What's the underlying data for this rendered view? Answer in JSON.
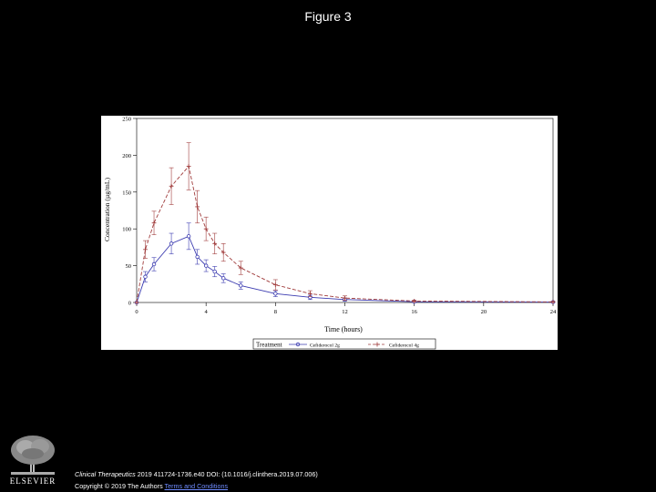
{
  "slide": {
    "title": "Figure 3",
    "citation_journal": "Clinical Therapeutics",
    "citation_rest": " 2019 411724-1736.e40 DOI: (10.1016/j.clinthera.2019.07.006)",
    "copyright_text": "Copyright © 2019 The Authors ",
    "terms_link": "Terms and Conditions",
    "publisher": "ELSEVIER"
  },
  "chart_data": {
    "type": "line",
    "xlabel": "Time (hours)",
    "ylabel": "Concentration (µg/mL)",
    "xlim": [
      0,
      24
    ],
    "ylim": [
      0,
      250
    ],
    "x_ticks": [
      0,
      4,
      8,
      12,
      16,
      20,
      24
    ],
    "y_ticks": [
      0,
      50,
      100,
      150,
      200,
      250
    ],
    "legend_title": "Treatment",
    "legend_position": "bottom",
    "series": [
      {
        "name": "Cefiderocol 2g",
        "color": "#3b3bb0",
        "line_style": "solid",
        "marker": "circle",
        "x": [
          0,
          0.5,
          1,
          2,
          3,
          3.5,
          4,
          4.5,
          5,
          6,
          8,
          10,
          12,
          16,
          24
        ],
        "y": [
          0,
          35,
          52,
          80,
          90,
          62,
          50,
          42,
          33,
          23,
          12,
          7,
          4,
          1,
          0.5
        ],
        "err": [
          0,
          7,
          9,
          14,
          18,
          10,
          8,
          7,
          6,
          5,
          4,
          3,
          2,
          1,
          0.5
        ]
      },
      {
        "name": "Cefiderocol 4g",
        "color": "#a03c3c",
        "line_style": "dashed",
        "marker": "plus",
        "x": [
          0,
          0.5,
          1,
          2,
          3,
          3.5,
          4,
          4.5,
          5,
          6,
          8,
          10,
          12,
          16,
          24
        ],
        "y": [
          0,
          72,
          108,
          158,
          185,
          130,
          100,
          80,
          68,
          47,
          24,
          12,
          6,
          2,
          0.8
        ],
        "err": [
          0,
          12,
          16,
          25,
          32,
          22,
          16,
          14,
          12,
          9,
          7,
          4,
          3,
          1,
          0.5
        ]
      }
    ]
  },
  "colors": {
    "background": "#000000",
    "figure_bg": "#ffffff",
    "link": "#6f8cff"
  }
}
